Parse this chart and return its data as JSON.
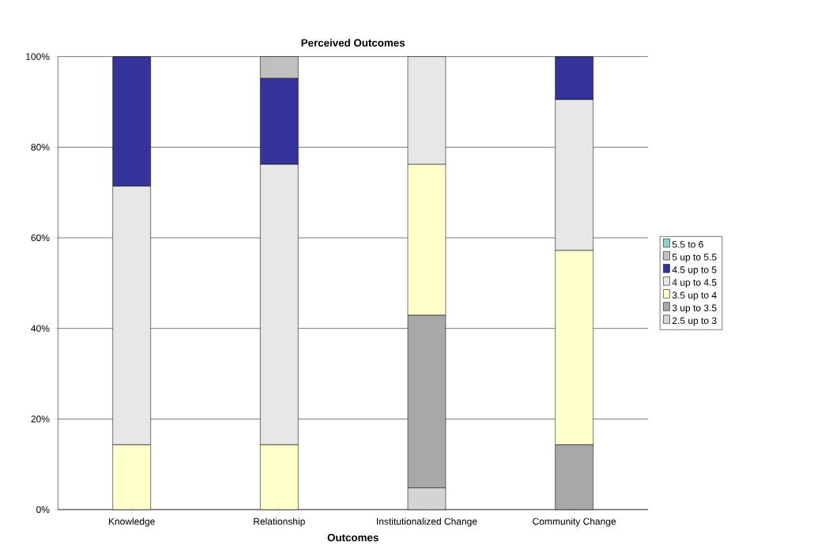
{
  "chart_data": {
    "type": "bar",
    "stacked": true,
    "title": "Perceived Outcomes",
    "xlabel": "Outcomes",
    "categories": [
      "Knowledge",
      "Relationship",
      "Institutionalized Change",
      "Community Change"
    ],
    "series": [
      {
        "name": "2.5 up to 3",
        "color": "#d4d4d4",
        "values": [
          0,
          0,
          4.8,
          0
        ]
      },
      {
        "name": "3 up to 3.5",
        "color": "#a8a8a8",
        "values": [
          0,
          0,
          38.1,
          14.3
        ]
      },
      {
        "name": "3.5 up to 4",
        "color": "#ffffcc",
        "values": [
          14.3,
          14.3,
          33.3,
          42.9
        ]
      },
      {
        "name": "4 up to 4.5",
        "color": "#e6e6e6",
        "values": [
          57.1,
          61.9,
          23.8,
          33.3
        ]
      },
      {
        "name": "4.5 up to 5",
        "color": "#333399",
        "values": [
          28.6,
          19.0,
          0,
          9.5
        ]
      },
      {
        "name": "5 up to 5.5",
        "color": "#c0c0c0",
        "values": [
          0,
          4.8,
          0,
          0
        ]
      },
      {
        "name": "5.5 to 6",
        "color": "#99cccc",
        "values": [
          0,
          0,
          0,
          0
        ]
      }
    ],
    "ylim": [
      0,
      100
    ],
    "yticks": [
      {
        "value": 0,
        "label": "0%"
      },
      {
        "value": 20,
        "label": "20%"
      },
      {
        "value": 40,
        "label": "40%"
      },
      {
        "value": 60,
        "label": "60%"
      },
      {
        "value": 80,
        "label": "80%"
      },
      {
        "value": 100,
        "label": "100%"
      }
    ],
    "grid": "y",
    "legend": "right"
  }
}
